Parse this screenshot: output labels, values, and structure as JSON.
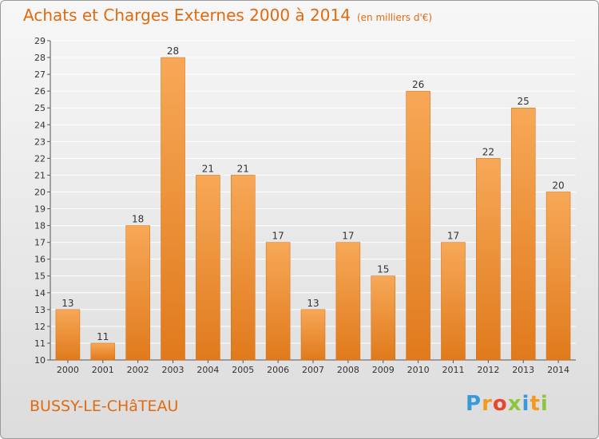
{
  "header": {
    "title": "Achats et Charges Externes 2000 à 2014",
    "unit_note": "(en milliers d'€)"
  },
  "footer": {
    "commune": "BUSSY-LE-CHâTEAU",
    "logo_letters": [
      "P",
      "r",
      "o",
      "x",
      "i",
      "t",
      "i"
    ],
    "logo_colors": [
      "#3a9ad9",
      "#f29a1f",
      "#e8462f",
      "#8cc63f",
      "#3a9ad9",
      "#f29a1f",
      "#8cc63f"
    ]
  },
  "colors": {
    "bar_light": "#f7a857",
    "bar_dark": "#e07a1c",
    "title": "#e06a10",
    "grid": "#ffffff"
  },
  "chart_data": {
    "type": "bar",
    "title": "Achats et Charges Externes 2000 à 2014",
    "subtitle": "(en milliers d'€)",
    "categories": [
      "2000",
      "2001",
      "2002",
      "2003",
      "2004",
      "2005",
      "2006",
      "2007",
      "2008",
      "2009",
      "2010",
      "2011",
      "2012",
      "2013",
      "2014"
    ],
    "values": [
      13,
      11,
      18,
      28,
      21,
      21,
      17,
      13,
      17,
      15,
      26,
      17,
      22,
      25,
      20
    ],
    "ylim": [
      10,
      29
    ],
    "yticks": [
      10,
      11,
      12,
      13,
      14,
      15,
      16,
      17,
      18,
      19,
      20,
      21,
      22,
      23,
      24,
      25,
      26,
      27,
      28,
      29
    ],
    "grid": true,
    "legend": "none"
  }
}
